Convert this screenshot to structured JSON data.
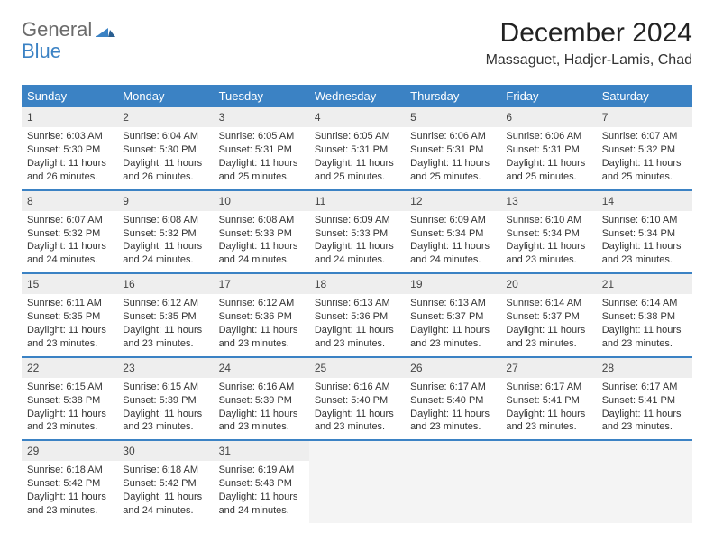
{
  "brand": {
    "name1": "General",
    "name2": "Blue"
  },
  "title": "December 2024",
  "location": "Massaguet, Hadjer-Lamis, Chad",
  "colors": {
    "header_bg": "#3b82c4",
    "header_text": "#ffffff",
    "daynum_bg": "#eeeeee",
    "border": "#3b82c4",
    "text": "#333333",
    "background": "#ffffff"
  },
  "weekdays": [
    "Sunday",
    "Monday",
    "Tuesday",
    "Wednesday",
    "Thursday",
    "Friday",
    "Saturday"
  ],
  "weeks": [
    [
      {
        "n": "1",
        "sr": "Sunrise: 6:03 AM",
        "ss": "Sunset: 5:30 PM",
        "dl": "Daylight: 11 hours and 26 minutes."
      },
      {
        "n": "2",
        "sr": "Sunrise: 6:04 AM",
        "ss": "Sunset: 5:30 PM",
        "dl": "Daylight: 11 hours and 26 minutes."
      },
      {
        "n": "3",
        "sr": "Sunrise: 6:05 AM",
        "ss": "Sunset: 5:31 PM",
        "dl": "Daylight: 11 hours and 25 minutes."
      },
      {
        "n": "4",
        "sr": "Sunrise: 6:05 AM",
        "ss": "Sunset: 5:31 PM",
        "dl": "Daylight: 11 hours and 25 minutes."
      },
      {
        "n": "5",
        "sr": "Sunrise: 6:06 AM",
        "ss": "Sunset: 5:31 PM",
        "dl": "Daylight: 11 hours and 25 minutes."
      },
      {
        "n": "6",
        "sr": "Sunrise: 6:06 AM",
        "ss": "Sunset: 5:31 PM",
        "dl": "Daylight: 11 hours and 25 minutes."
      },
      {
        "n": "7",
        "sr": "Sunrise: 6:07 AM",
        "ss": "Sunset: 5:32 PM",
        "dl": "Daylight: 11 hours and 25 minutes."
      }
    ],
    [
      {
        "n": "8",
        "sr": "Sunrise: 6:07 AM",
        "ss": "Sunset: 5:32 PM",
        "dl": "Daylight: 11 hours and 24 minutes."
      },
      {
        "n": "9",
        "sr": "Sunrise: 6:08 AM",
        "ss": "Sunset: 5:32 PM",
        "dl": "Daylight: 11 hours and 24 minutes."
      },
      {
        "n": "10",
        "sr": "Sunrise: 6:08 AM",
        "ss": "Sunset: 5:33 PM",
        "dl": "Daylight: 11 hours and 24 minutes."
      },
      {
        "n": "11",
        "sr": "Sunrise: 6:09 AM",
        "ss": "Sunset: 5:33 PM",
        "dl": "Daylight: 11 hours and 24 minutes."
      },
      {
        "n": "12",
        "sr": "Sunrise: 6:09 AM",
        "ss": "Sunset: 5:34 PM",
        "dl": "Daylight: 11 hours and 24 minutes."
      },
      {
        "n": "13",
        "sr": "Sunrise: 6:10 AM",
        "ss": "Sunset: 5:34 PM",
        "dl": "Daylight: 11 hours and 23 minutes."
      },
      {
        "n": "14",
        "sr": "Sunrise: 6:10 AM",
        "ss": "Sunset: 5:34 PM",
        "dl": "Daylight: 11 hours and 23 minutes."
      }
    ],
    [
      {
        "n": "15",
        "sr": "Sunrise: 6:11 AM",
        "ss": "Sunset: 5:35 PM",
        "dl": "Daylight: 11 hours and 23 minutes."
      },
      {
        "n": "16",
        "sr": "Sunrise: 6:12 AM",
        "ss": "Sunset: 5:35 PM",
        "dl": "Daylight: 11 hours and 23 minutes."
      },
      {
        "n": "17",
        "sr": "Sunrise: 6:12 AM",
        "ss": "Sunset: 5:36 PM",
        "dl": "Daylight: 11 hours and 23 minutes."
      },
      {
        "n": "18",
        "sr": "Sunrise: 6:13 AM",
        "ss": "Sunset: 5:36 PM",
        "dl": "Daylight: 11 hours and 23 minutes."
      },
      {
        "n": "19",
        "sr": "Sunrise: 6:13 AM",
        "ss": "Sunset: 5:37 PM",
        "dl": "Daylight: 11 hours and 23 minutes."
      },
      {
        "n": "20",
        "sr": "Sunrise: 6:14 AM",
        "ss": "Sunset: 5:37 PM",
        "dl": "Daylight: 11 hours and 23 minutes."
      },
      {
        "n": "21",
        "sr": "Sunrise: 6:14 AM",
        "ss": "Sunset: 5:38 PM",
        "dl": "Daylight: 11 hours and 23 minutes."
      }
    ],
    [
      {
        "n": "22",
        "sr": "Sunrise: 6:15 AM",
        "ss": "Sunset: 5:38 PM",
        "dl": "Daylight: 11 hours and 23 minutes."
      },
      {
        "n": "23",
        "sr": "Sunrise: 6:15 AM",
        "ss": "Sunset: 5:39 PM",
        "dl": "Daylight: 11 hours and 23 minutes."
      },
      {
        "n": "24",
        "sr": "Sunrise: 6:16 AM",
        "ss": "Sunset: 5:39 PM",
        "dl": "Daylight: 11 hours and 23 minutes."
      },
      {
        "n": "25",
        "sr": "Sunrise: 6:16 AM",
        "ss": "Sunset: 5:40 PM",
        "dl": "Daylight: 11 hours and 23 minutes."
      },
      {
        "n": "26",
        "sr": "Sunrise: 6:17 AM",
        "ss": "Sunset: 5:40 PM",
        "dl": "Daylight: 11 hours and 23 minutes."
      },
      {
        "n": "27",
        "sr": "Sunrise: 6:17 AM",
        "ss": "Sunset: 5:41 PM",
        "dl": "Daylight: 11 hours and 23 minutes."
      },
      {
        "n": "28",
        "sr": "Sunrise: 6:17 AM",
        "ss": "Sunset: 5:41 PM",
        "dl": "Daylight: 11 hours and 23 minutes."
      }
    ],
    [
      {
        "n": "29",
        "sr": "Sunrise: 6:18 AM",
        "ss": "Sunset: 5:42 PM",
        "dl": "Daylight: 11 hours and 23 minutes."
      },
      {
        "n": "30",
        "sr": "Sunrise: 6:18 AM",
        "ss": "Sunset: 5:42 PM",
        "dl": "Daylight: 11 hours and 24 minutes."
      },
      {
        "n": "31",
        "sr": "Sunrise: 6:19 AM",
        "ss": "Sunset: 5:43 PM",
        "dl": "Daylight: 11 hours and 24 minutes."
      },
      null,
      null,
      null,
      null
    ]
  ]
}
